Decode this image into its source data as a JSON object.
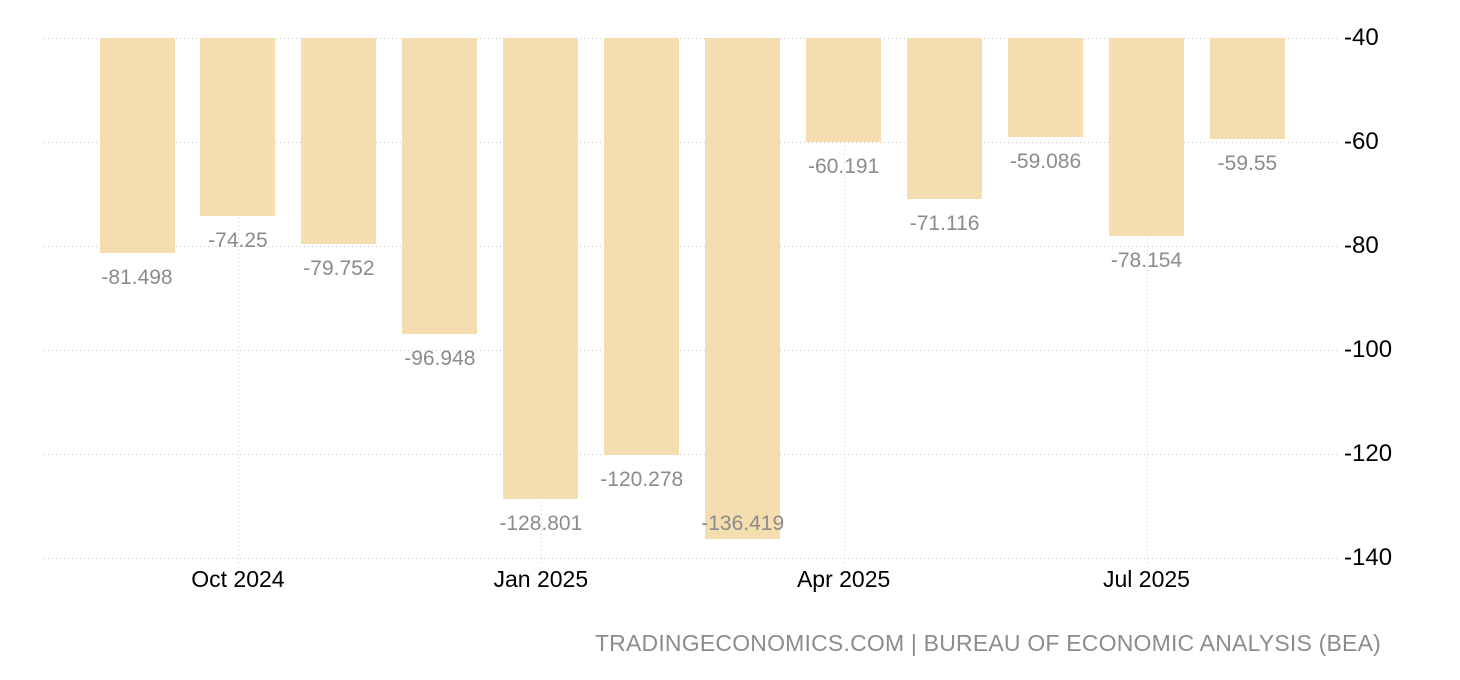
{
  "chart_data": {
    "type": "bar",
    "values": [
      -81.498,
      -74.25,
      -79.752,
      -96.948,
      -128.801,
      -120.278,
      -136.419,
      -60.191,
      -71.116,
      -59.086,
      -78.154,
      -59.55
    ],
    "data_labels": [
      "-81.498",
      "-74.25",
      "-79.752",
      "-96.948",
      "-128.801",
      "-120.278",
      "-136.419",
      "-60.191",
      "-71.116",
      "-59.086",
      "-78.154",
      "-59.55"
    ],
    "x_ticks": [
      {
        "label": "Oct 2024",
        "bar_index": 1
      },
      {
        "label": "Jan 2025",
        "bar_index": 4
      },
      {
        "label": "Apr 2025",
        "bar_index": 7
      },
      {
        "label": "Jul 2025",
        "bar_index": 10
      }
    ],
    "y_ticks": [
      {
        "value": -40,
        "label": "-40"
      },
      {
        "value": -60,
        "label": "-60"
      },
      {
        "value": -80,
        "label": "-80"
      },
      {
        "value": -100,
        "label": "-100"
      },
      {
        "value": -120,
        "label": "-120"
      },
      {
        "value": -140,
        "label": "-140"
      }
    ],
    "ylim": [
      -140,
      -40
    ],
    "grid": true,
    "legend": "none",
    "title": "",
    "xlabel": "",
    "ylabel": "",
    "bar_color": "#f4ddae",
    "grid_color": "#c9c9c9",
    "value_label_color": "#8b8b8b",
    "axis_label_color": "#000000",
    "attribution": "TRADINGECONOMICS.COM | BUREAU OF ECONOMIC ANALYSIS (BEA)"
  }
}
